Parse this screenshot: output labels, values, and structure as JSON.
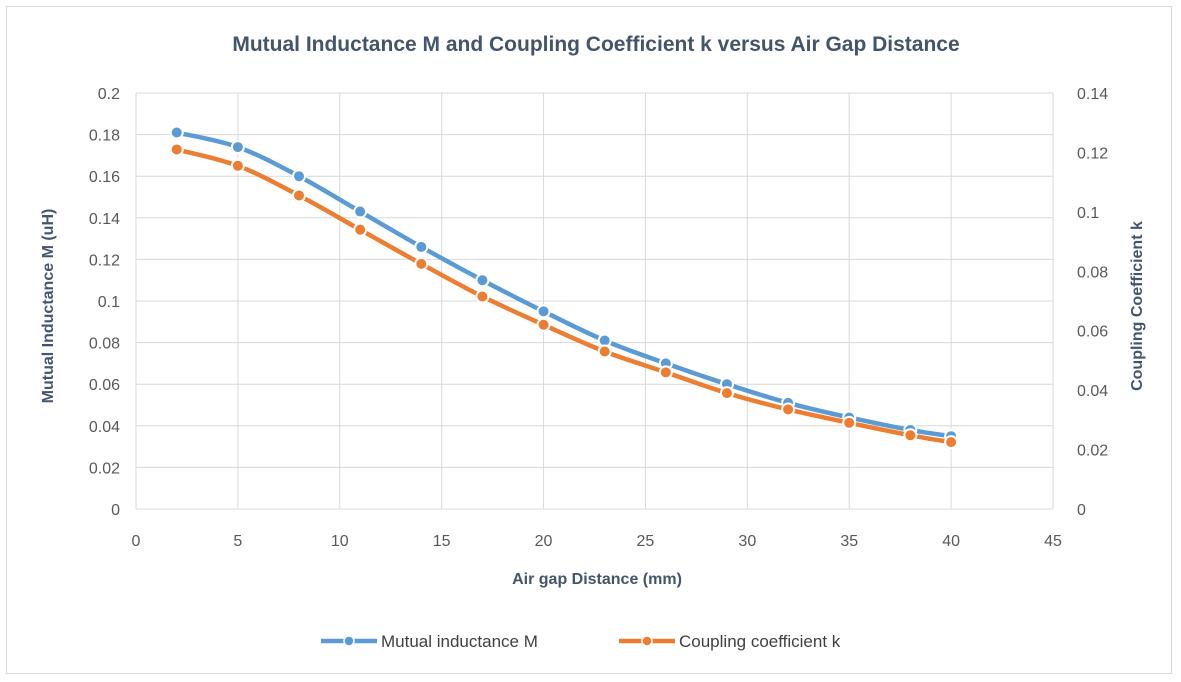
{
  "chart_data": {
    "type": "line",
    "title": "Mutual Inductance M and Coupling Coefficient k versus Air Gap Distance",
    "xlabel": "Air gap Distance (mm)",
    "ylabel": "Mutual Inductance M (uH)",
    "y2label": "Coupling Coefficient k",
    "xlim": [
      0,
      45
    ],
    "xticks": [
      "0",
      "5",
      "10",
      "15",
      "20",
      "25",
      "30",
      "35",
      "40",
      "45"
    ],
    "ylim": [
      0,
      0.2
    ],
    "yticks": [
      "0",
      "0.02",
      "0.04",
      "0.06",
      "0.08",
      "0.1",
      "0.12",
      "0.14",
      "0.16",
      "0.18",
      "0.2"
    ],
    "y2lim": [
      0,
      0.14
    ],
    "y2ticks": [
      "0",
      "0.02",
      "0.04",
      "0.06",
      "0.08",
      "0.1",
      "0.12",
      "0.14"
    ],
    "grid": true,
    "legend_position": "bottom",
    "x": [
      2,
      5,
      8,
      11,
      14,
      17,
      20,
      23,
      26,
      29,
      32,
      35,
      38,
      40
    ],
    "series": [
      {
        "name": "Mutual inductance M",
        "axis": "left",
        "color": "#5b9bd5",
        "values": [
          0.181,
          0.174,
          0.16,
          0.143,
          0.126,
          0.11,
          0.095,
          0.081,
          0.07,
          0.06,
          0.051,
          0.044,
          0.038,
          0.035
        ]
      },
      {
        "name": "Coupling coefficient k",
        "axis": "right",
        "color": "#ed7d31",
        "values": [
          0.121,
          0.1155,
          0.1055,
          0.094,
          0.0825,
          0.0715,
          0.062,
          0.053,
          0.046,
          0.039,
          0.0335,
          0.029,
          0.0248,
          0.0225
        ]
      }
    ]
  }
}
